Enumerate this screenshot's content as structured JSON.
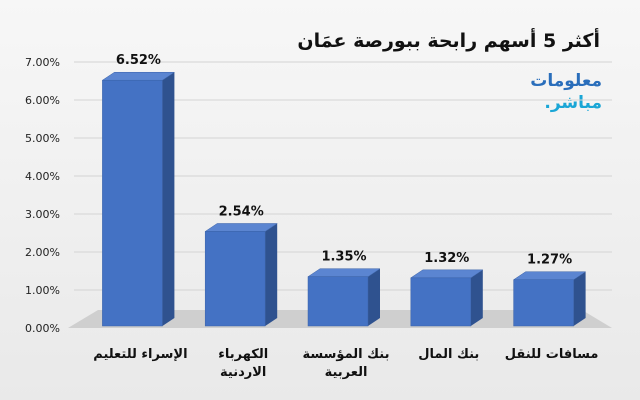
{
  "chart_data": {
    "type": "bar",
    "title": "أكثر 5 أسهم رابحة ببورصة عمَان",
    "categories": [
      [
        "الإسراء للتعليم"
      ],
      [
        "الكهرباء",
        "الاردنية"
      ],
      [
        "بنك المؤسسة",
        "العربية"
      ],
      [
        "بنك المال"
      ],
      [
        "مسافات للنقل"
      ]
    ],
    "values": [
      6.52,
      2.54,
      1.35,
      1.32,
      1.27
    ],
    "data_labels": [
      "6.52%",
      "2.54%",
      "1.35%",
      "1.32%",
      "1.27%"
    ],
    "ylim": [
      0,
      7
    ],
    "yticks": [
      "0.00%",
      "1.00%",
      "2.00%",
      "3.00%",
      "4.00%",
      "5.00%",
      "6.00%",
      "7.00%"
    ],
    "grid": true,
    "bar_color": "#4472c4"
  },
  "logo": {
    "line1": "معلومات",
    "line2": "مباشر."
  }
}
